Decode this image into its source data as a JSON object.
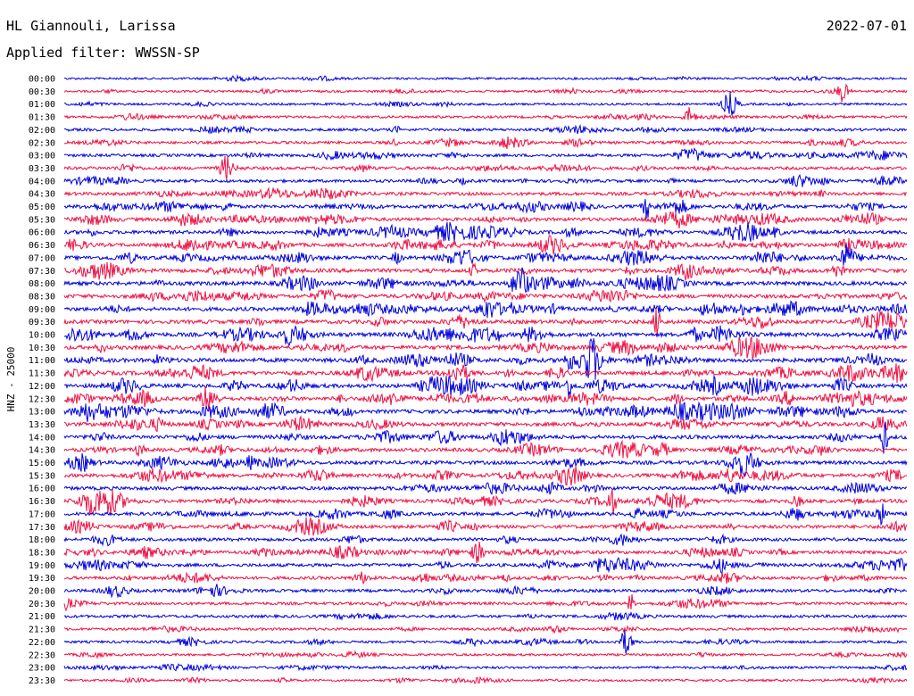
{
  "header": {
    "station": "HL Giannouli, Larissa",
    "date": "2022-07-01",
    "filter": "Applied filter: WWSSN-SP"
  },
  "chart_data": {
    "type": "helicorder",
    "ylabel": "HNZ - 25000",
    "rows": [
      "00:00",
      "00:30",
      "01:00",
      "01:30",
      "02:00",
      "02:30",
      "03:00",
      "03:30",
      "04:00",
      "04:30",
      "05:00",
      "05:30",
      "06:00",
      "06:30",
      "07:00",
      "07:30",
      "08:00",
      "08:30",
      "09:00",
      "09:30",
      "10:00",
      "10:30",
      "11:00",
      "11:30",
      "12:00",
      "12:30",
      "13:00",
      "13:30",
      "14:00",
      "14:30",
      "15:00",
      "15:30",
      "16:00",
      "16:30",
      "17:00",
      "17:30",
      "18:00",
      "18:30",
      "19:00",
      "19:30",
      "20:00",
      "20:30",
      "21:00",
      "21:30",
      "22:00",
      "22:30",
      "23:00",
      "23:30"
    ],
    "colors": [
      "#0000dd",
      "#ee1144"
    ],
    "activity": [
      0.25,
      0.3,
      0.3,
      0.4,
      0.5,
      0.5,
      0.55,
      0.6,
      0.6,
      0.7,
      0.7,
      0.75,
      0.8,
      0.8,
      0.9,
      0.95,
      0.95,
      0.9,
      0.9,
      0.9,
      1.0,
      1.0,
      1.0,
      0.95,
      0.95,
      0.9,
      0.9,
      0.9,
      0.9,
      0.85,
      0.85,
      0.8,
      0.8,
      0.8,
      0.75,
      0.75,
      0.7,
      0.7,
      0.7,
      0.65,
      0.6,
      0.55,
      0.5,
      0.45,
      0.4,
      0.35,
      0.35,
      0.3
    ]
  }
}
